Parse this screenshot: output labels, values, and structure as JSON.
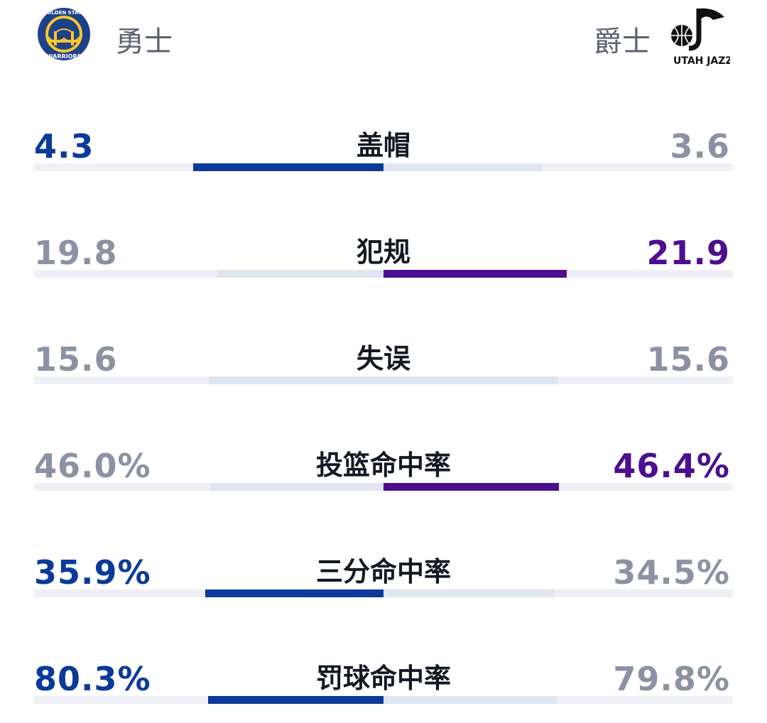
{
  "colors": {
    "home": "#0a3a9a",
    "away": "#4b0f8f",
    "neutral": "#8b92a3",
    "track": "#eef0f5",
    "range": "#e1e5ef"
  },
  "teams": {
    "home": {
      "name": "勇士",
      "logo_icon": "golden-state-warriors-logo",
      "logo_text_top": "GOLDEN STATE",
      "logo_text_bottom": "WARRIORS"
    },
    "away": {
      "name": "爵士",
      "logo_icon": "utah-jazz-logo",
      "logo_text": "UTAH JAZZ"
    }
  },
  "stats": [
    {
      "label": "盖帽",
      "home": "4.3",
      "away": "3.6",
      "home_num": 4.3,
      "away_num": 3.6,
      "leader": "home"
    },
    {
      "label": "犯规",
      "home": "19.8",
      "away": "21.9",
      "home_num": 19.8,
      "away_num": 21.9,
      "leader": "away"
    },
    {
      "label": "失误",
      "home": "15.6",
      "away": "15.6",
      "home_num": 15.6,
      "away_num": 15.6,
      "leader": "none"
    },
    {
      "label": "投篮命中率",
      "home": "46.0%",
      "away": "46.4%",
      "home_num": 46.0,
      "away_num": 46.4,
      "leader": "away"
    },
    {
      "label": "三分命中率",
      "home": "35.9%",
      "away": "34.5%",
      "home_num": 35.9,
      "away_num": 34.5,
      "leader": "home"
    },
    {
      "label": "罚球命中率",
      "home": "80.3%",
      "away": "79.8%",
      "home_num": 80.3,
      "away_num": 79.8,
      "leader": "home"
    }
  ]
}
